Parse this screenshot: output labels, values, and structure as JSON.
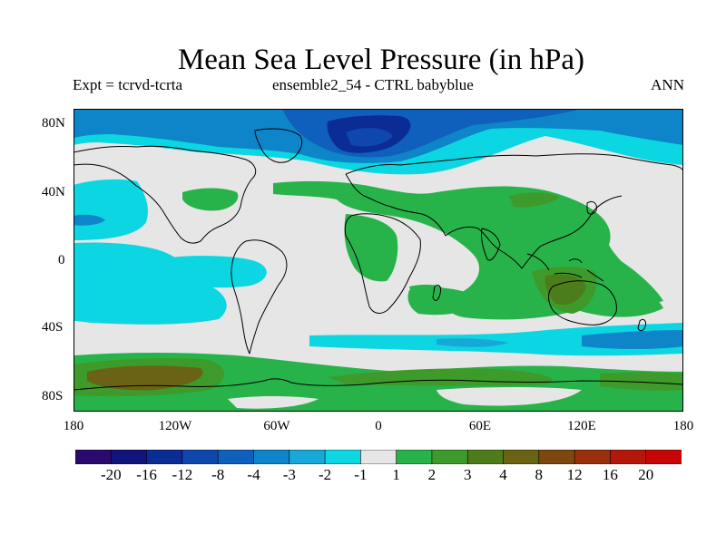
{
  "title": "Mean Sea Level Pressure (in hPa)",
  "subtitle": {
    "left": "Expt = tcrvd-tcrta",
    "center": "ensemble2_54 - CTRL babyblue",
    "right": "ANN"
  },
  "axes": {
    "y_labels": [
      "80N",
      "40N",
      "0",
      "40S",
      "80S"
    ],
    "x_labels": [
      "180",
      "120W",
      "60W",
      "0",
      "60E",
      "120E",
      "180"
    ]
  },
  "colorbar": {
    "colors": [
      "#2a0a6e",
      "#10157c",
      "#0b2c94",
      "#0e47ad",
      "#0f60bc",
      "#0e84c9",
      "#18a8d8",
      "#0bd6e1",
      "#e6e6e6",
      "#28b34a",
      "#3e9a2a",
      "#4d7d1b",
      "#6a6313",
      "#7f4710",
      "#99300c",
      "#b4180a",
      "#c80505"
    ],
    "labels": [
      "-20",
      "-16",
      "-12",
      "-8",
      "-4",
      "-3",
      "-2",
      "-1",
      "1",
      "2",
      "3",
      "4",
      "8",
      "12",
      "16",
      "20"
    ]
  },
  "colors": {
    "neutral": "#e6e6e6",
    "cyan": "#0bd6e1",
    "light_blue": "#18a8d8",
    "mid_blue": "#0e84c9",
    "blue": "#0f60bc",
    "dark_blue": "#0b2c94",
    "green": "#28b34a",
    "dark_green": "#3e9a2a",
    "olive": "#4d7d1b",
    "brown": "#6a6313",
    "coast": "#000000"
  }
}
